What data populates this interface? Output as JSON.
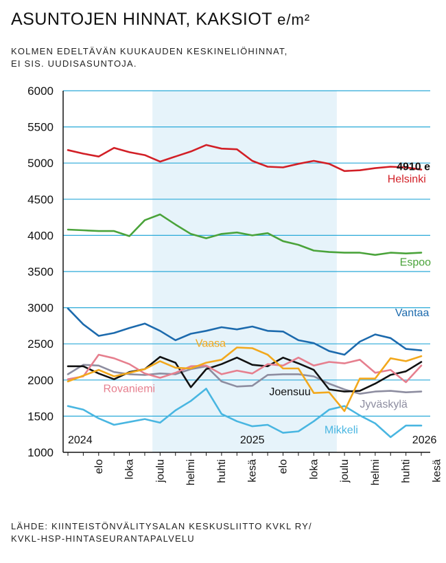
{
  "header": {
    "title_main": "ASUNTOJEN HINNAT, KAKSIOT",
    "title_unit": "e/m²",
    "subtitle_line1": "KOLMEN EDELTÄVÄN KUUKAUDEN KESKINELIÖHINNAT,",
    "subtitle_line2": "EI SIS. UUDISASUNTOJA."
  },
  "footer": {
    "source_line1": "LÄHDE: KIINTEISTÖNVÄLITYSALAN KESKUSLIITTO KVKL RY/",
    "source_line2": "KVKL-HSP-HINTASEURANTAPALVELU"
  },
  "colors": {
    "grid": "#29a9d8",
    "shade": "#e6f3fa",
    "axis": "#111111"
  },
  "chart_data": {
    "type": "line",
    "ylim": [
      1000,
      6000
    ],
    "yticks": [
      1000,
      1500,
      2000,
      2500,
      3000,
      3500,
      4000,
      4500,
      5000,
      5500,
      6000
    ],
    "xlabels": [
      "elo",
      "loka",
      "joulu",
      "helmi",
      "huhti",
      "kesä",
      "elo",
      "loka",
      "joulu",
      "helmi",
      "huhti",
      "kesä"
    ],
    "xlabel_indices": [
      2,
      4,
      6,
      8,
      10,
      12,
      14,
      16,
      18,
      20,
      22,
      24
    ],
    "year_labels": [
      {
        "text": "2024",
        "index": 0,
        "anchor": "start"
      },
      {
        "text": "2025",
        "index": 12,
        "anchor": "middle"
      },
      {
        "text": "2026",
        "index": 24,
        "anchor": "end"
      }
    ],
    "shaded_index_range": [
      5.5,
      17.5
    ],
    "last_value_label": "4910 e",
    "series": [
      {
        "name": "Helsinki",
        "color": "#d21f26",
        "label_y": 4730,
        "label_x_index": 20.8,
        "values": [
          5180,
          5130,
          5090,
          5210,
          5150,
          5110,
          5020,
          5090,
          5160,
          5250,
          5200,
          5190,
          5030,
          4950,
          4940,
          4990,
          5030,
          4990,
          4890,
          4900,
          4930,
          4950,
          4940,
          4910
        ]
      },
      {
        "name": "Espoo",
        "color": "#4aa33a",
        "label_y": 3580,
        "label_x_index": 21.6,
        "values": [
          4080,
          4070,
          4060,
          4060,
          3990,
          4210,
          4290,
          4150,
          4020,
          3960,
          4020,
          4040,
          4000,
          4030,
          3920,
          3870,
          3790,
          3770,
          3760,
          3760,
          3730,
          3760,
          3750,
          3760
        ]
      },
      {
        "name": "Vantaa",
        "color": "#1c6aad",
        "label_y": 2880,
        "label_x_index": 21.3,
        "values": [
          2990,
          2770,
          2610,
          2650,
          2720,
          2780,
          2680,
          2550,
          2640,
          2680,
          2730,
          2700,
          2740,
          2680,
          2670,
          2550,
          2510,
          2400,
          2350,
          2530,
          2630,
          2580,
          2430,
          2410
        ]
      },
      {
        "name": "Vaasa",
        "color": "#f2a81c",
        "label_y": 2460,
        "label_x_index": 8.3,
        "values": [
          1980,
          2060,
          2140,
          2050,
          2100,
          2150,
          2260,
          2170,
          2160,
          2240,
          2280,
          2450,
          2440,
          2350,
          2160,
          2160,
          1820,
          1830,
          1570,
          2020,
          2020,
          2300,
          2260,
          2330
        ]
      },
      {
        "name": "Rovaniemi",
        "color": "#e67f8e",
        "label_y": 1830,
        "label_x_index": 2.3,
        "values": [
          2010,
          2050,
          2350,
          2300,
          2220,
          2090,
          2030,
          2100,
          2190,
          2200,
          2080,
          2130,
          2090,
          2220,
          2200,
          2310,
          2200,
          2250,
          2230,
          2280,
          2100,
          2140,
          1970,
          2200
        ]
      },
      {
        "name": "Joensuu",
        "color": "#111111",
        "label_y": 1790,
        "label_x_index": 13.1,
        "values": [
          2190,
          2190,
          2090,
          2010,
          2110,
          2150,
          2320,
          2240,
          1900,
          2150,
          2220,
          2310,
          2210,
          2190,
          2310,
          2230,
          2140,
          1870,
          1840,
          1850,
          1950,
          2070,
          2120,
          2250
        ]
      },
      {
        "name": "Jyväskylä",
        "color": "#8d8da0",
        "label_y": 1620,
        "label_x_index": 19.0,
        "values": [
          2080,
          2210,
          2200,
          2110,
          2080,
          2070,
          2090,
          2080,
          2150,
          2190,
          1980,
          1910,
          1920,
          2070,
          2080,
          2080,
          2050,
          1950,
          1870,
          1810,
          1840,
          1850,
          1830,
          1840
        ]
      },
      {
        "name": "Mikkeli",
        "color": "#49b6e1",
        "label_y": 1260,
        "label_x_index": 16.7,
        "values": [
          1640,
          1590,
          1470,
          1380,
          1420,
          1460,
          1410,
          1580,
          1710,
          1880,
          1530,
          1430,
          1360,
          1380,
          1270,
          1290,
          1430,
          1590,
          1640,
          1510,
          1400,
          1210,
          1370,
          1370
        ]
      }
    ]
  }
}
